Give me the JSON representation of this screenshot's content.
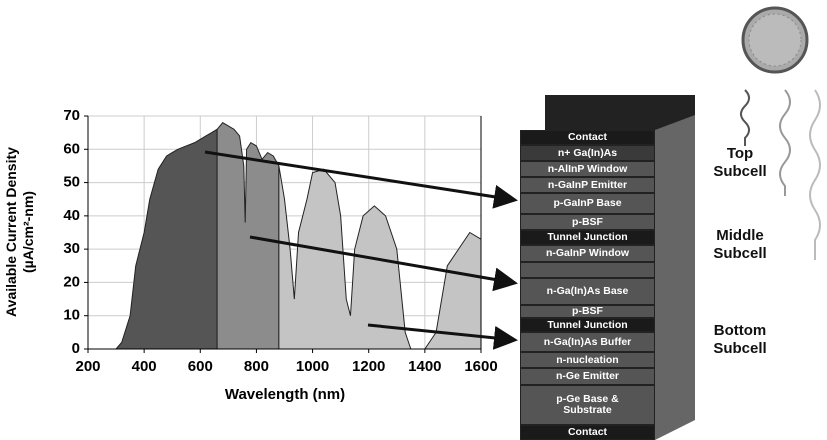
{
  "chart_data": {
    "type": "area",
    "x_label": "Wavelength (nm)",
    "y_label": "Available Current Density (µA/cm²-nm)",
    "xlim": [
      200,
      1600
    ],
    "ylim": [
      0,
      70
    ],
    "xticks": [
      200,
      400,
      600,
      800,
      1000,
      1200,
      1400,
      1600
    ],
    "yticks": [
      0,
      10,
      20,
      30,
      40,
      50,
      60,
      70
    ],
    "grid": true,
    "series": [
      {
        "color": "#555555",
        "x": [
          300,
          320,
          350,
          370,
          400,
          420,
          450,
          480,
          500,
          520,
          550,
          580,
          600,
          620,
          640,
          660
        ],
        "values": [
          0,
          2,
          10,
          25,
          35,
          45,
          54,
          58,
          59,
          60,
          61,
          62,
          63,
          64,
          65,
          66
        ]
      },
      {
        "color": "#8c8c8c",
        "x": [
          660,
          680,
          700,
          720,
          740,
          755,
          760,
          765,
          780,
          800,
          820,
          840,
          860,
          880
        ],
        "values": [
          66,
          68,
          67,
          66,
          64,
          55,
          38,
          60,
          62,
          61,
          57,
          59,
          58,
          55
        ]
      },
      {
        "color": "#c4c4c4",
        "x": [
          880,
          900,
          920,
          935,
          950,
          980,
          1000,
          1040,
          1080,
          1100,
          1120,
          1135,
          1150,
          1180,
          1220,
          1260,
          1300,
          1330,
          1350,
          1400,
          1440,
          1480,
          1520,
          1560,
          1600
        ],
        "values": [
          55,
          45,
          30,
          15,
          35,
          45,
          53,
          54,
          50,
          40,
          15,
          10,
          30,
          40,
          43,
          40,
          30,
          5,
          0,
          0,
          5,
          25,
          30,
          35,
          33
        ]
      }
    ]
  },
  "diagram": {
    "layers": [
      "Contact",
      "n+ Ga(In)As",
      "n-AlInP Window",
      "n-GaInP Emitter",
      "p-GaInP Base",
      "p-BSF",
      "Tunnel Junction",
      "n-GaInP Window",
      "n-Ga(In)As Base",
      "p-BSF",
      "Tunnel Junction",
      "n-Ga(In)As Buffer",
      "n-nucleation",
      "n-Ge Emitter",
      "p-Ge Base & Substrate",
      "Contact"
    ],
    "subcells": [
      "Top Subcell",
      "Middle Subcell",
      "Bottom Subcell"
    ]
  }
}
